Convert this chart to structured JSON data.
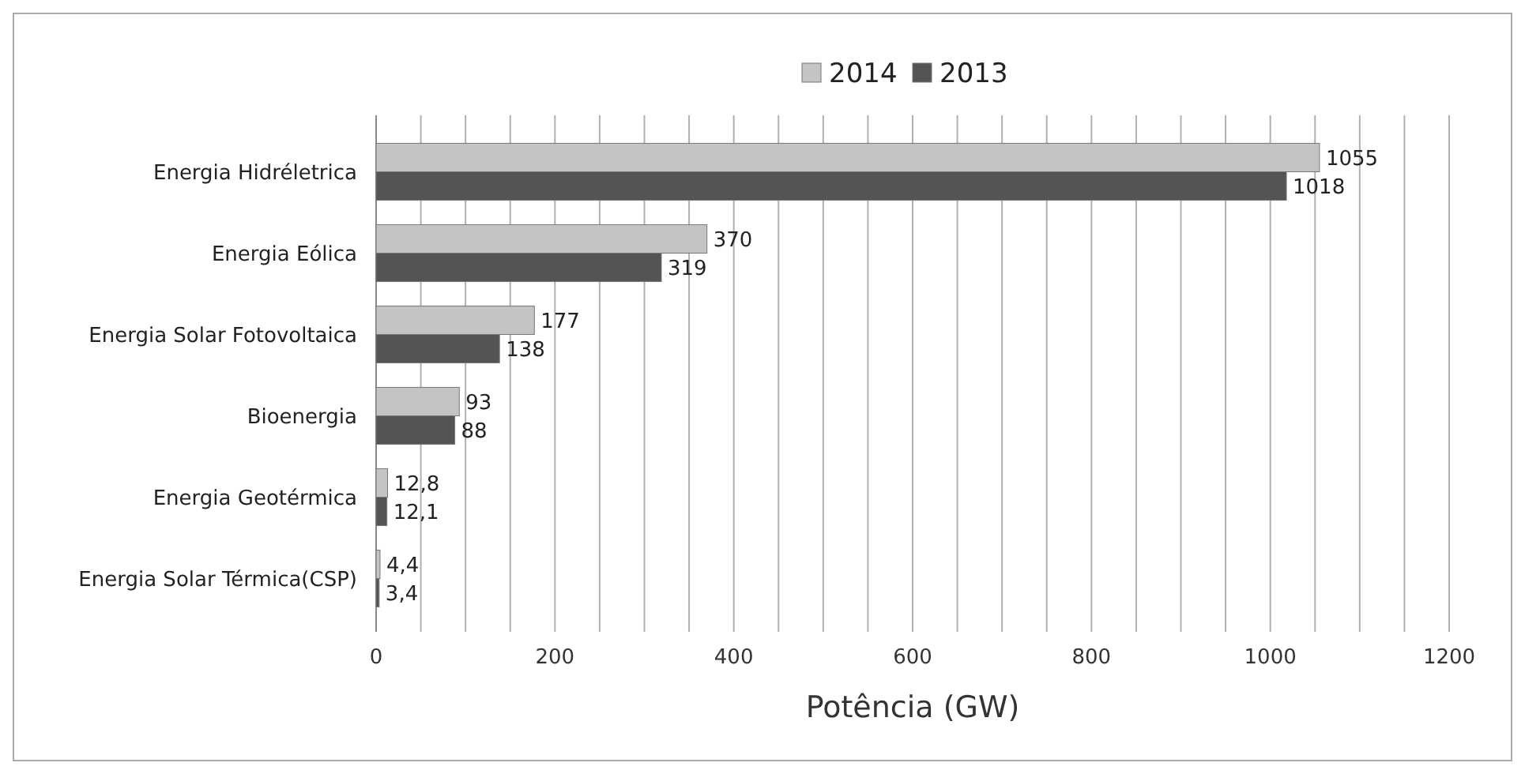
{
  "chart_data": {
    "type": "bar",
    "orientation": "horizontal",
    "xlabel": "Potência (GW)",
    "categories": [
      "Energia Hidréletrica",
      "Energia Eólica",
      "Energia Solar Fotovoltaica",
      "Bioenergia",
      "Energia Geotérmica",
      "Energia Solar Térmica(CSP)"
    ],
    "series": [
      {
        "name": "2014",
        "color": "#c4c4c4",
        "values": [
          1055,
          370,
          177,
          93,
          12.8,
          4.4
        ],
        "value_labels": [
          "1055",
          "370",
          "177",
          "93",
          "12,8",
          "4,4"
        ]
      },
      {
        "name": "2013",
        "color": "#545454",
        "values": [
          1018,
          319,
          138,
          88,
          12.1,
          3.4
        ],
        "value_labels": [
          "1018",
          "319",
          "138",
          "88",
          "12,1",
          "3,4"
        ]
      }
    ],
    "xlim": [
      0,
      1200
    ],
    "xticks": [
      0,
      {
        "value": 50,
        "label": null
      },
      200,
      {
        "value": 100,
        "label": null
      },
      {
        "value": 150,
        "label": null
      },
      {
        "value": 250,
        "label": null
      },
      {
        "value": 300,
        "label": null
      },
      {
        "value": 350,
        "label": null
      },
      400,
      {
        "value": 450,
        "label": null
      },
      {
        "value": 500,
        "label": null
      },
      {
        "value": 550,
        "label": null
      },
      600,
      {
        "value": 650,
        "label": null
      },
      {
        "value": 700,
        "label": null
      },
      {
        "value": 750,
        "label": null
      },
      800,
      {
        "value": 850,
        "label": null
      },
      {
        "value": 900,
        "label": null
      },
      {
        "value": 950,
        "label": null
      },
      1000,
      {
        "value": 1050,
        "label": null
      },
      {
        "value": 1100,
        "label": null
      },
      {
        "value": 1150,
        "label": null
      },
      1200
    ],
    "grid": "x",
    "legend": "top"
  }
}
